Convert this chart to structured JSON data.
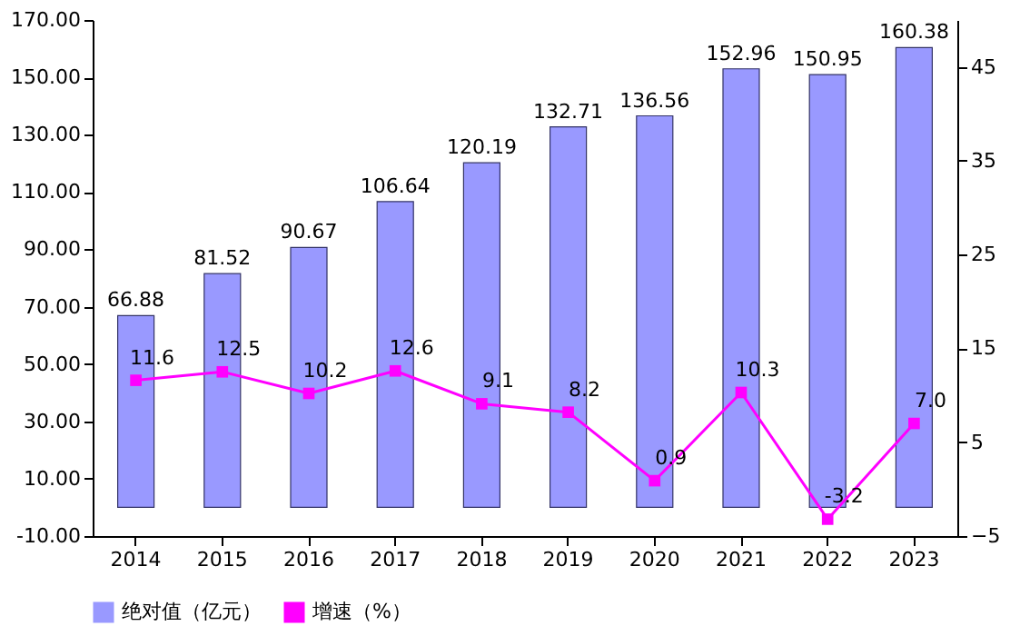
{
  "chart_data": {
    "type": "bar",
    "categories": [
      "2014",
      "2015",
      "2016",
      "2017",
      "2018",
      "2019",
      "2020",
      "2021",
      "2022",
      "2023"
    ],
    "series": [
      {
        "name": "绝对值（亿元）",
        "color": "#9999ff",
        "values": [
          66.88,
          81.52,
          90.67,
          106.64,
          120.19,
          132.71,
          136.56,
          152.96,
          150.95,
          160.38
        ],
        "value_labels": [
          "66.88",
          "81.52",
          "90.67",
          "106.64",
          "120.19",
          "132.71",
          "136.56",
          "152.96",
          "150.95",
          "160.38"
        ]
      },
      {
        "name": "增速（%）",
        "color": "#ff00ff",
        "type": "line",
        "axis": "y2",
        "marker": "square",
        "values": [
          11.6,
          12.5,
          10.2,
          12.6,
          9.1,
          8.2,
          0.9,
          10.3,
          -3.2,
          7.0
        ],
        "value_labels": [
          "11.6",
          "12.5",
          "10.2",
          "12.6",
          "9.1",
          "8.2",
          "0.9",
          "10.3",
          "-3.2",
          "7.0"
        ]
      }
    ],
    "ylim": [
      -10,
      170
    ],
    "yticks": [
      {
        "value": -10,
        "label": "-10.00"
      },
      {
        "value": 10,
        "label": "10.00"
      },
      {
        "value": 30,
        "label": "30.00"
      },
      {
        "value": 50,
        "label": "50.00"
      },
      {
        "value": 70,
        "label": "70.00"
      },
      {
        "value": 90,
        "label": "90.00"
      },
      {
        "value": 110,
        "label": "110.00"
      },
      {
        "value": 130,
        "label": "130.00"
      },
      {
        "value": 150,
        "label": "150.00"
      },
      {
        "value": 170,
        "label": "170.00"
      }
    ],
    "y2lim": [
      -5,
      50
    ],
    "y2ticks": [
      -5,
      5,
      15,
      25,
      35,
      45
    ],
    "legend": "bottom",
    "grid": false
  }
}
